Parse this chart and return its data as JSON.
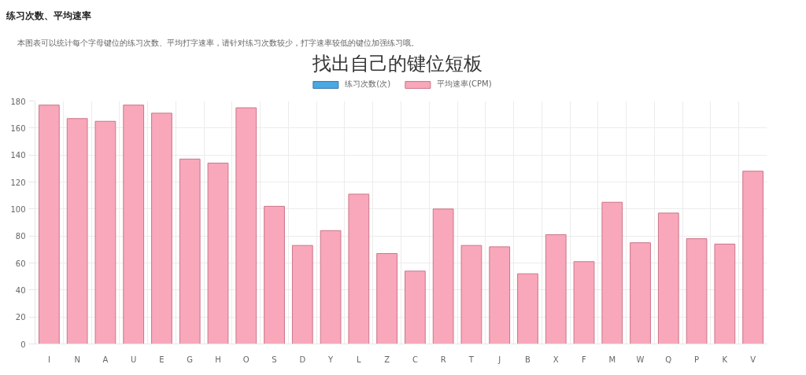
{
  "chart_data": {
    "type": "bar",
    "title": "找出自己的键位短板",
    "annotations": [
      "练习次数、平均速率",
      "本图表可以统计每个字母键位的练习次数、平均打字速率，请针对练习次数较少，打字速率较低的键位加强练习哦。"
    ],
    "categories": [
      "I",
      "N",
      "A",
      "U",
      "E",
      "G",
      "H",
      "O",
      "S",
      "D",
      "Y",
      "L",
      "Z",
      "C",
      "R",
      "T",
      "J",
      "B",
      "X",
      "F",
      "M",
      "W",
      "Q",
      "P",
      "K",
      "V"
    ],
    "series": [
      {
        "name": "练习次数(次)",
        "color": "#4aa8e4",
        "values": [
          null,
          null,
          null,
          null,
          null,
          null,
          null,
          null,
          null,
          null,
          null,
          null,
          null,
          null,
          null,
          null,
          null,
          null,
          null,
          null,
          null,
          null,
          null,
          null,
          null,
          null
        ]
      },
      {
        "name": "平均速率(CPM)",
        "color": "#f8a8ba",
        "values": [
          177,
          167,
          165,
          177,
          171,
          137,
          134,
          175,
          102,
          73,
          84,
          111,
          67,
          54,
          100,
          73,
          72,
          52,
          81,
          61,
          105,
          75,
          97,
          78,
          74,
          128
        ]
      }
    ],
    "ylim": [
      0,
      180
    ],
    "yticks": [
      0,
      20,
      40,
      60,
      80,
      100,
      120,
      140,
      160,
      180
    ],
    "grid": true,
    "legend": "top"
  }
}
